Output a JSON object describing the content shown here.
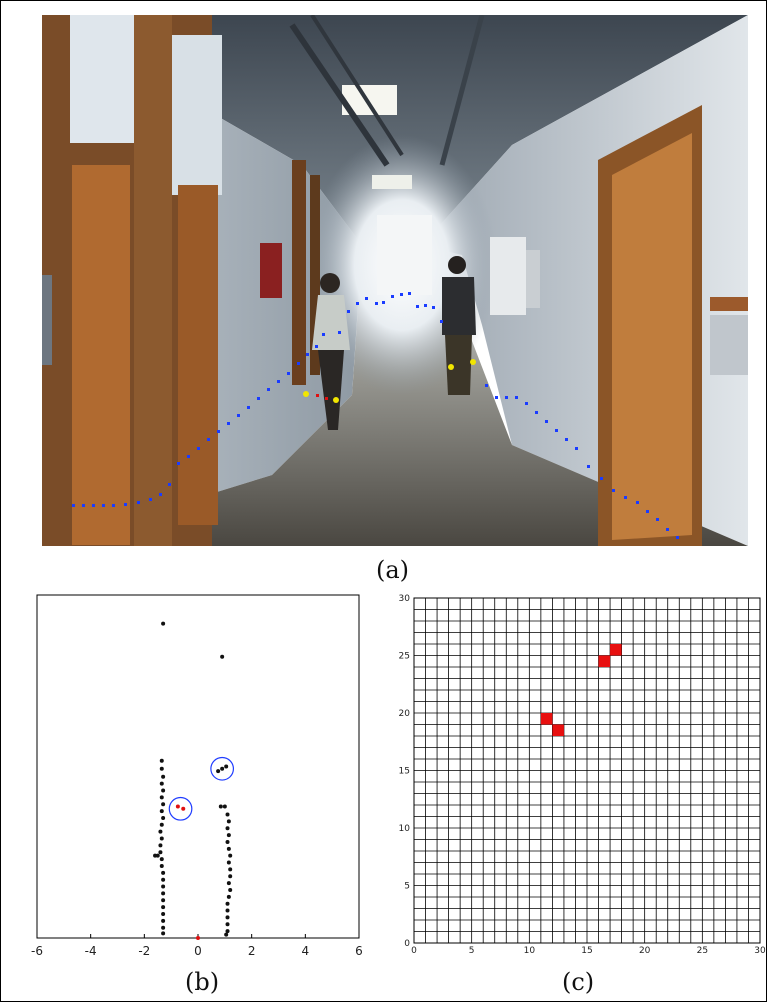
{
  "captions": {
    "a": "(a)",
    "b": "(b)",
    "c": "(c)"
  },
  "colors": {
    "scan_points": "#1a3cff",
    "person_points": "#f2e600",
    "target_point": "#e01010",
    "cluster_circle": "#1f3cff",
    "grid_cell": "#e81010"
  },
  "chart_data": [
    {
      "type": "scatter",
      "panel": "(b)",
      "xlim": [
        -6,
        6
      ],
      "ylim": [
        0,
        30
      ],
      "xticks": [
        "-6",
        "-4",
        "-2",
        "0",
        "2",
        "4",
        "6"
      ],
      "series": [
        {
          "points": [
            [
              -1.3,
              27.5
            ],
            [
              0.9,
              24.6
            ],
            [
              -1.35,
              15.5
            ],
            [
              -1.35,
              14.8
            ],
            [
              -1.3,
              14.1
            ],
            [
              -1.35,
              13.5
            ],
            [
              -1.3,
              12.9
            ],
            [
              -1.35,
              12.3
            ],
            [
              -1.3,
              11.7
            ],
            [
              -1.35,
              11.1
            ],
            [
              -1.3,
              10.5
            ],
            [
              -1.35,
              9.9
            ],
            [
              -1.4,
              9.3
            ],
            [
              -1.35,
              8.7
            ],
            [
              -1.4,
              8.1
            ],
            [
              -1.4,
              7.5
            ],
            [
              -1.6,
              7.2
            ],
            [
              -1.5,
              7.2
            ],
            [
              -1.35,
              6.9
            ],
            [
              -1.35,
              6.3
            ],
            [
              -1.3,
              5.7
            ],
            [
              -1.3,
              5.1
            ],
            [
              -1.3,
              4.5
            ],
            [
              -1.3,
              3.9
            ],
            [
              -1.3,
              3.3
            ],
            [
              -1.3,
              2.7
            ],
            [
              -1.3,
              2.1
            ],
            [
              -1.3,
              1.5
            ],
            [
              -1.3,
              0.9
            ],
            [
              -1.3,
              0.4
            ],
            [
              0.75,
              14.6
            ],
            [
              0.9,
              14.8
            ],
            [
              1.05,
              15.0
            ],
            [
              0.85,
              11.5
            ],
            [
              1.0,
              11.5
            ],
            [
              1.1,
              10.8
            ],
            [
              1.15,
              10.2
            ],
            [
              1.1,
              9.6
            ],
            [
              1.15,
              9.0
            ],
            [
              1.1,
              8.4
            ],
            [
              1.15,
              7.8
            ],
            [
              1.2,
              7.2
            ],
            [
              1.15,
              6.6
            ],
            [
              1.2,
              6.0
            ],
            [
              1.2,
              5.4
            ],
            [
              1.15,
              4.8
            ],
            [
              1.2,
              4.2
            ],
            [
              1.15,
              3.6
            ],
            [
              1.1,
              3.0
            ],
            [
              1.1,
              2.4
            ],
            [
              1.1,
              1.8
            ],
            [
              1.1,
              1.2
            ],
            [
              1.1,
              0.6
            ],
            [
              1.05,
              0.3
            ]
          ]
        },
        {
          "points": [
            [
              -0.75,
              11.5
            ],
            [
              -0.55,
              11.3
            ]
          ]
        },
        {
          "points": [
            [
              0.0,
              0.0
            ]
          ]
        }
      ],
      "clusters": [
        {
          "cx": -0.65,
          "cy": 11.3,
          "r": 0.42
        },
        {
          "cx": 0.9,
          "cy": 14.8,
          "r": 0.42
        }
      ]
    },
    {
      "type": "heatmap",
      "panel": "(c)",
      "xlim": [
        0,
        30
      ],
      "ylim": [
        0,
        30
      ],
      "xticks": [
        "0",
        "5",
        "10",
        "15",
        "20",
        "25",
        "30"
      ],
      "yticks": [
        "0",
        "5",
        "10",
        "15",
        "20",
        "25",
        "30"
      ],
      "occupied_cells": [
        [
          11,
          19
        ],
        [
          12,
          18
        ],
        [
          16,
          24
        ],
        [
          17,
          25
        ]
      ]
    }
  ]
}
